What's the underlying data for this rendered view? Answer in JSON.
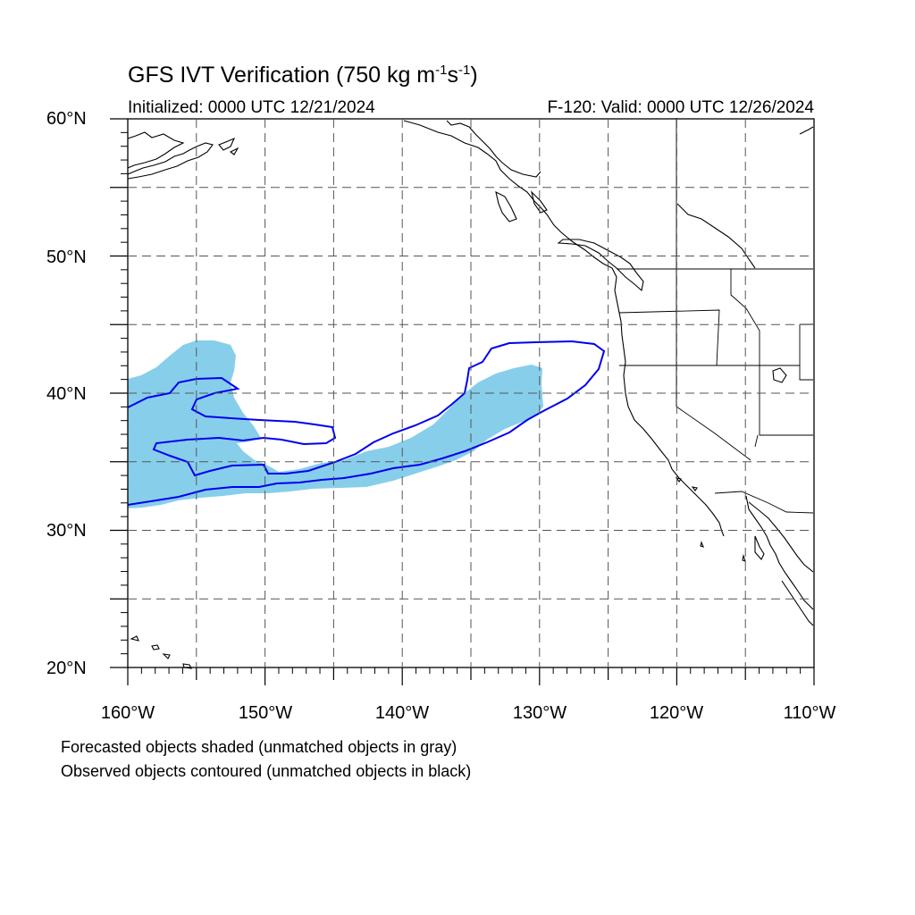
{
  "title": {
    "text": "GFS IVT Verification (750 kg m",
    "sup1": "-1",
    "mid": "s",
    "sup2": "-1",
    "end": ")"
  },
  "subtitle_left": "Initialized: 0000 UTC 12/21/2024",
  "subtitle_right": "F-120: Valid: 0000 UTC 12/26/2024",
  "map": {
    "lon_range": [
      -160,
      -110
    ],
    "lat_range": [
      20,
      60
    ],
    "grid_dashed": true,
    "lat_ticks": [
      "60°N",
      "50°N",
      "40°N",
      "30°N",
      "20°N"
    ],
    "lon_ticks": [
      "160°W",
      "150°W",
      "140°W",
      "130°W",
      "120°W",
      "110°W"
    ],
    "colors": {
      "forecast_fill": "#87CEEB",
      "observed_contour": "#0000EE",
      "coastline": "#000000",
      "grid": "#555555"
    }
  },
  "legend": {
    "line1": "Forecasted objects shaded (unmatched objects in gray)",
    "line2": "Observed objects contoured (unmatched objects in black)"
  }
}
